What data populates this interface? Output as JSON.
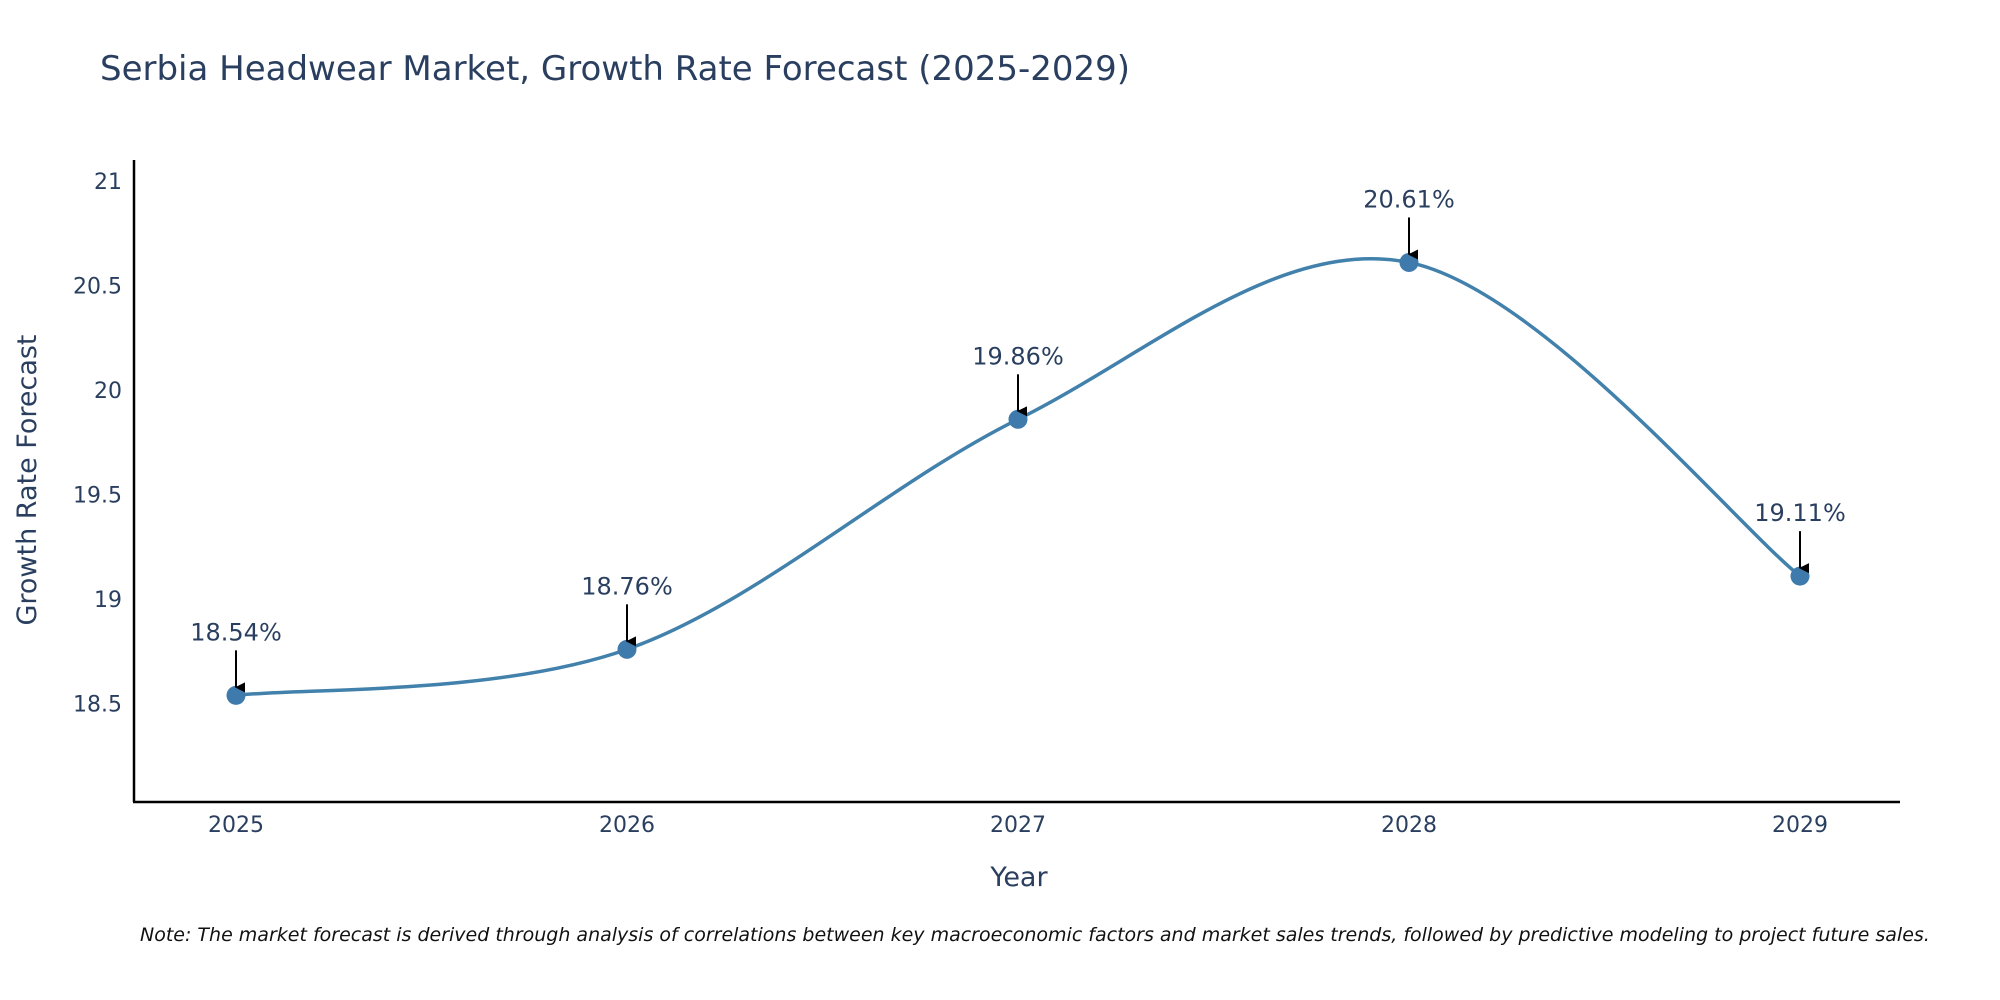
{
  "chart_data": {
    "type": "line",
    "title": "Serbia Headwear Market, Growth Rate Forecast (2025-2029)",
    "xlabel": "Year",
    "ylabel": "Growth Rate Forecast",
    "categories": [
      "2025",
      "2026",
      "2027",
      "2028",
      "2029"
    ],
    "series": [
      {
        "name": "Growth Rate Forecast",
        "values": [
          18.54,
          18.76,
          19.86,
          20.61,
          19.11
        ],
        "labels": [
          "18.54%",
          "18.76%",
          "19.86%",
          "20.61%",
          "19.11%"
        ]
      }
    ],
    "ylim": [
      18.03,
      21.1
    ],
    "yticks": [
      18.5,
      19,
      19.5,
      20,
      20.5,
      21
    ],
    "ytick_labels": [
      "18.5",
      "19",
      "19.5",
      "20",
      "20.5",
      "21"
    ],
    "line_shape": "spline",
    "grid": false,
    "note": "Note: The market forecast is derived through analysis of correlations between key macroeconomic factors and market sales trends, followed by predictive modeling to project future sales."
  },
  "colors": {
    "line": "#4281ac",
    "marker": "#3e7bac",
    "text": "#2a3f5f",
    "axis": "#000000",
    "arrow": "#000000"
  }
}
